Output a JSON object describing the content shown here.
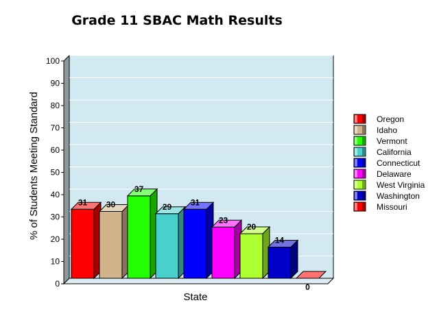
{
  "chart_data": {
    "type": "bar",
    "title": "Grade 11 SBAC Math Results",
    "xlabel": "State",
    "ylabel": "% of Students Meeting Standard",
    "ylim": [
      0,
      100
    ],
    "yticks": [
      0,
      10,
      20,
      30,
      40,
      50,
      60,
      70,
      80,
      90,
      100
    ],
    "grid": true,
    "legend_position": "right",
    "plot_background": "#d2e9f2",
    "categories": [
      "Oregon",
      "Idaho",
      "Vermont",
      "California",
      "Connecticut",
      "Delaware",
      "West Virginia",
      "Washington",
      "Missouri"
    ],
    "values": [
      31,
      30,
      37,
      29,
      31,
      23,
      20,
      14,
      0
    ],
    "colors": [
      "#ff0000",
      "#d2b48c",
      "#22ff00",
      "#48d1cc",
      "#0000ff",
      "#ff00ff",
      "#adff2f",
      "#0000c8",
      "#ff0000"
    ]
  }
}
